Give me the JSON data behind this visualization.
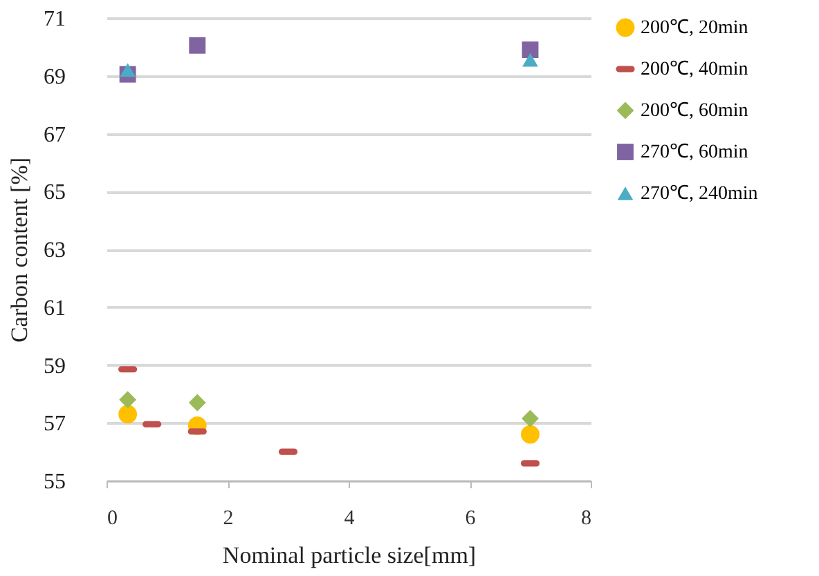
{
  "chart_data": {
    "type": "scatter",
    "xlabel": "Nominal particle size[mm]",
    "ylabel": "Carbon content [%]",
    "xlim": [
      0,
      8
    ],
    "xticks": [
      0,
      2,
      4,
      6,
      8
    ],
    "ylim": [
      55,
      71
    ],
    "yticks": [
      55,
      57,
      59,
      61,
      63,
      65,
      67,
      69,
      71
    ],
    "grid": "y",
    "legend": "right",
    "series": [
      {
        "name": "200℃, 20min",
        "color": "#ffc000",
        "marker": "circle",
        "x": [
          0.35,
          1.5,
          7
        ],
        "values": [
          57.3,
          56.9,
          56.6
        ]
      },
      {
        "name": "200℃, 40min",
        "color": "#c0504d",
        "x": [
          0.35,
          0.75,
          1.5,
          3,
          7
        ],
        "values": [
          58.85,
          56.95,
          56.7,
          56.0,
          55.6
        ]
      },
      {
        "name": "200℃, 60min",
        "color": "#9bbb59",
        "marker": "diamond",
        "x": [
          0.35,
          1.5,
          7
        ],
        "values": [
          57.8,
          57.7,
          57.15
        ]
      },
      {
        "name": "270℃, 60min",
        "color": "#8064a2",
        "marker": "square",
        "x": [
          0.35,
          1.5,
          7
        ],
        "values": [
          69.05,
          70.05,
          69.9
        ]
      },
      {
        "name": "270℃, 240min",
        "color": "#4bacc6",
        "marker": "triangle",
        "x": [
          0.35,
          7
        ],
        "values": [
          69.2,
          69.55
        ]
      }
    ]
  }
}
